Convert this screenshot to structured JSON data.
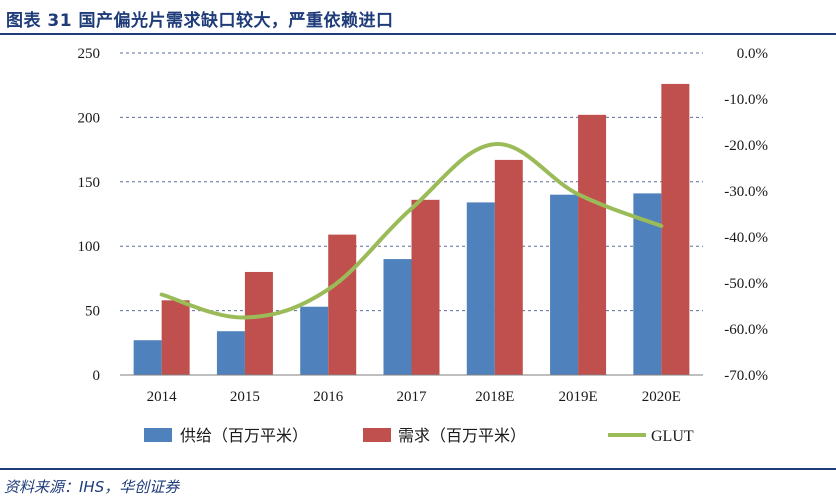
{
  "title": "图表 31   国产偏光片需求缺口较大，严重依赖进口",
  "source": "资料来源：IHS，华创证券",
  "colors": {
    "supply": "#4f81bd",
    "demand": "#c0504d",
    "glut": "#9bbb59",
    "accent": "#1f3c7a"
  },
  "chart_data": {
    "type": "bar",
    "categories": [
      "2014",
      "2015",
      "2016",
      "2017",
      "2018E",
      "2019E",
      "2020E"
    ],
    "series": [
      {
        "name": "供给（百万平米）",
        "type": "bar",
        "axis": "left",
        "values": [
          27,
          34,
          53,
          90,
          134,
          140,
          141
        ]
      },
      {
        "name": "需求（百万平米）",
        "type": "bar",
        "axis": "left",
        "values": [
          58,
          80,
          109,
          136,
          167,
          202,
          226
        ]
      },
      {
        "name": "GLUT",
        "type": "line",
        "smooth": true,
        "axis": "right",
        "values": [
          -52.5,
          -57.5,
          -51.4,
          -33.8,
          -19.8,
          -30.7,
          -37.6
        ]
      }
    ],
    "ylim": [
      0,
      250
    ],
    "yticks": [
      "0",
      "50",
      "100",
      "150",
      "200",
      "250"
    ],
    "y2lim": [
      -70,
      0
    ],
    "y2ticks": [
      "-70.0%",
      "-60.0%",
      "-50.0%",
      "-40.0%",
      "-30.0%",
      "-20.0%",
      "-10.0%",
      "0.0%"
    ],
    "grid": true,
    "legend": "bottom"
  }
}
